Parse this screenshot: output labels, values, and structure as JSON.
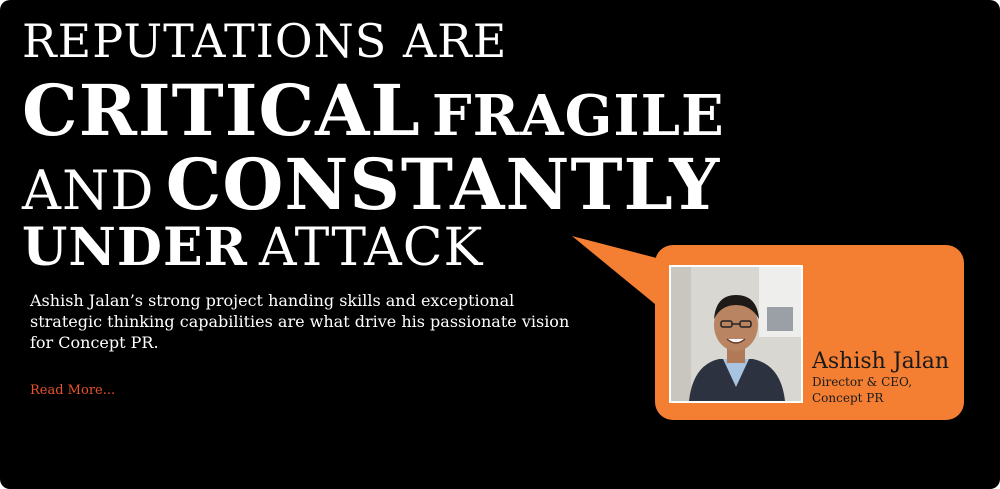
{
  "headline": {
    "line1": "REPUTATIONS ARE",
    "line2_bold": "CRITICAL",
    "line2_bold2": "FRAGILE",
    "line3_thin": "AND",
    "line3_bold": "CONSTANTLY",
    "line4_bold": "UNDER",
    "line4_thin": "ATTACK"
  },
  "bio": {
    "text": "Ashish Jalan’s strong project handing skills and exceptional strategic thinking capabilities are what drive his passionate vision for Concept PR.",
    "read_more": "Read More..."
  },
  "profile": {
    "name": "Ashish Jalan",
    "title_line1": "Director & CEO,",
    "title_line2": "Concept PR",
    "photo_icon": "person-photo"
  },
  "colors": {
    "background": "#000000",
    "accent": "#f47f33",
    "link": "#e8532a",
    "text": "#ffffff"
  }
}
